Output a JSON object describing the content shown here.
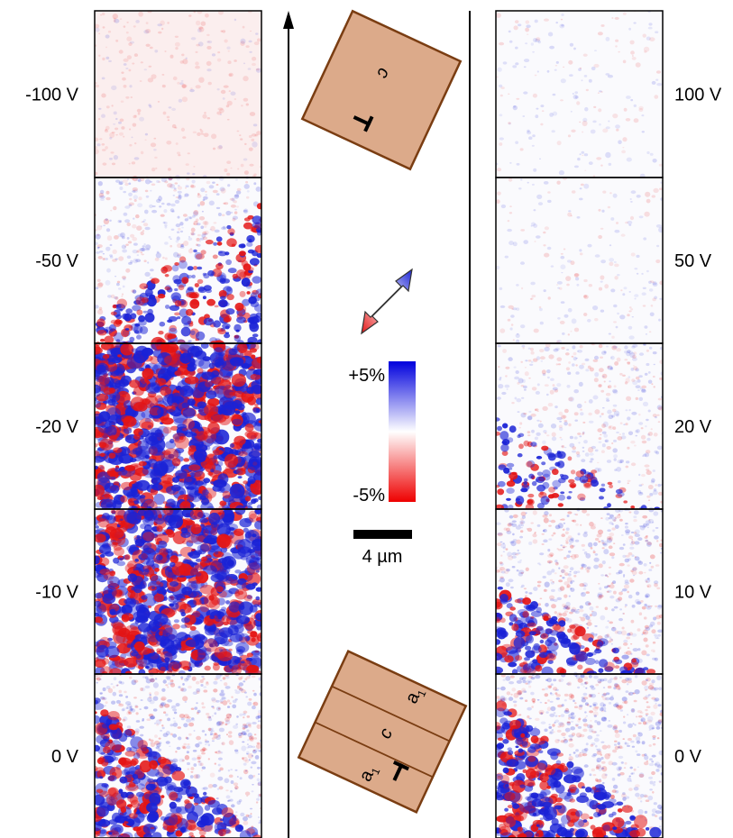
{
  "left_column": {
    "panels": [
      {
        "label": "-100 V",
        "density": 0.18,
        "wall_start": 0.0,
        "wall_end": 0.0,
        "tint": 0.35
      },
      {
        "label": "-50 V",
        "density": 0.55,
        "wall_start": 0.15,
        "wall_end": 0.85,
        "tint": 0.0
      },
      {
        "label": "-20 V",
        "density": 0.95,
        "wall_start": 1.0,
        "wall_end": 1.0,
        "tint": 0.0
      },
      {
        "label": "-10 V",
        "density": 0.9,
        "wall_start": 1.0,
        "wall_end": 0.35,
        "tint": 0.0
      },
      {
        "label": "0 V",
        "density": 0.8,
        "wall_start": 0.85,
        "wall_end": 0.0,
        "tint": 0.0
      }
    ]
  },
  "right_column": {
    "panels": [
      {
        "label": "100 V",
        "density": 0.08,
        "wall_start": 0.0,
        "wall_end": 0.0,
        "tint": 0.0
      },
      {
        "label": "50 V",
        "density": 0.1,
        "wall_start": 0.0,
        "wall_end": 0.0,
        "tint": 0.0
      },
      {
        "label": "20 V",
        "density": 0.45,
        "wall_start": 0.55,
        "wall_end": 0.0,
        "tint": 0.0
      },
      {
        "label": "10 V",
        "density": 0.7,
        "wall_start": 0.55,
        "wall_end": 0.0,
        "tint": 0.0
      },
      {
        "label": "0 V",
        "density": 0.8,
        "wall_start": 0.85,
        "wall_end": 0.0,
        "tint": 0.0
      }
    ]
  },
  "top_crystal": {
    "label_c": "c"
  },
  "bottom_crystal": {
    "label_a1_top": "a",
    "label_c": "c",
    "label_a1_bottom": "a",
    "subscript": "1"
  },
  "colorbar": {
    "max_label": "+5%",
    "min_label": "-5%",
    "max_color": "#0000dd",
    "mid_color": "#ffffff",
    "min_color": "#ee0000"
  },
  "scale_bar": {
    "label": "4 µm"
  },
  "colors": {
    "crystal_fill": "#dcaa8a",
    "crystal_stroke": "#7a3d12",
    "blue": "#1a22d6",
    "red": "#e41414",
    "frame": "#000000"
  }
}
